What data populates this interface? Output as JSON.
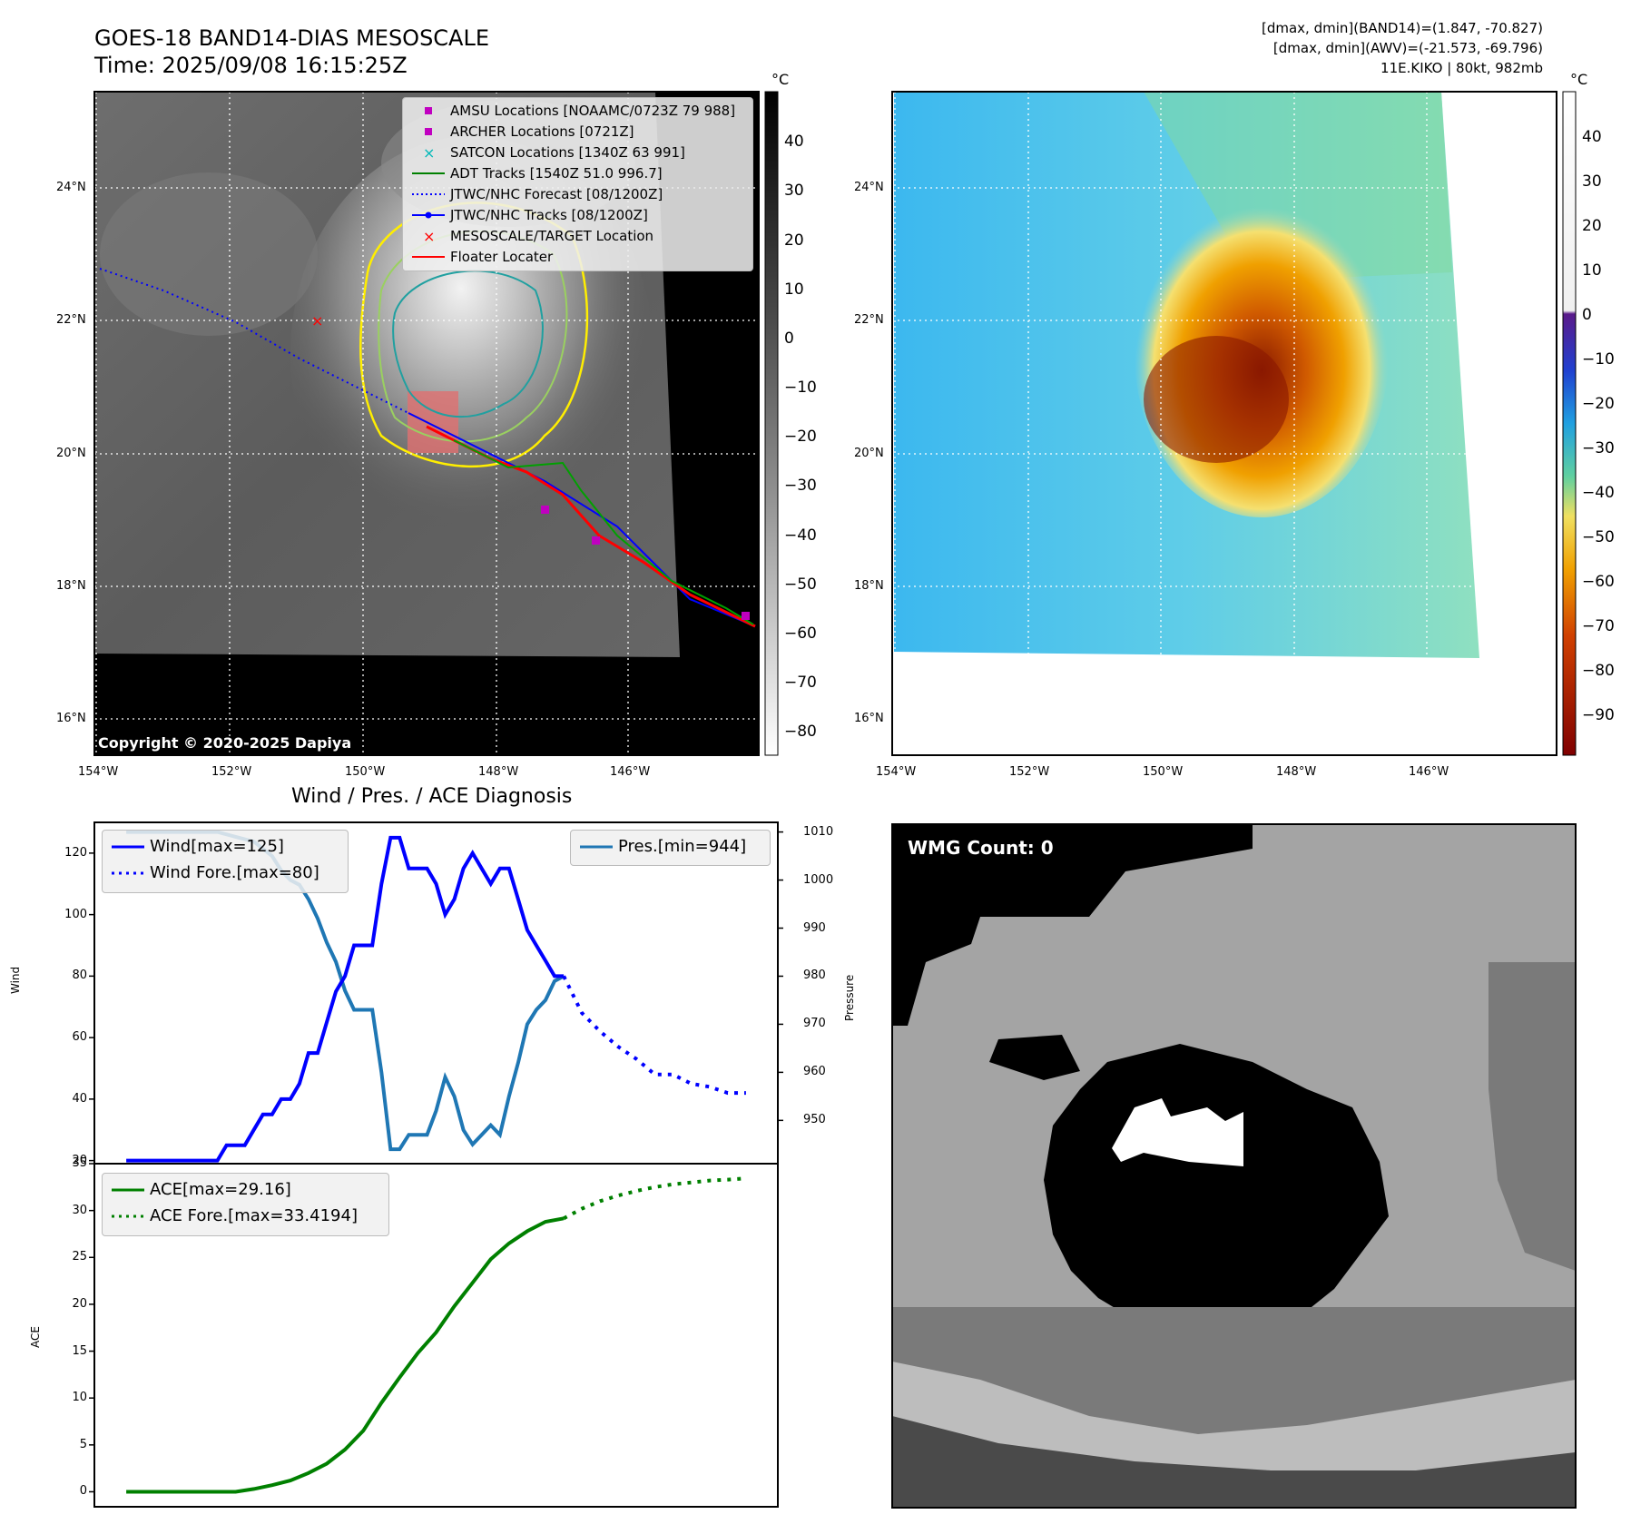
{
  "header": {
    "title_line1": "GOES-18 BAND14-DIAS MESOSCALE",
    "title_line2": "Time: 2025/09/08 16:15:25Z",
    "info_line1": "[dmax, dmin](BAND14)=(1.847, -70.827)",
    "info_line2": "[dmax, dmin](AWV)=(-21.573, -69.796)",
    "info_line3": "11E.KIKO | 80kt, 982mb"
  },
  "map_axes": {
    "lat_ticks": [
      "24°N",
      "22°N",
      "20°N",
      "18°N",
      "16°N"
    ],
    "lon_ticks": [
      "154°W",
      "152°W",
      "150°W",
      "148°W",
      "146°W"
    ]
  },
  "ir_panel": {
    "copyright": "Copyright © 2020-2025 Dapiya",
    "colorbar_unit": "°C",
    "colorbar_ticks": [
      "40",
      "30",
      "20",
      "10",
      "0",
      "−10",
      "−20",
      "−30",
      "−40",
      "−50",
      "−60",
      "−70",
      "−80"
    ],
    "legend": [
      {
        "label": "AMSU Locations [NOAAMC/0723Z 79 988]",
        "symbol": "square",
        "color": "#c000c0"
      },
      {
        "label": "ARCHER Locations [0721Z]",
        "symbol": "square",
        "color": "#c000c0"
      },
      {
        "label": "SATCON Locations [1340Z 63 991]",
        "symbol": "x",
        "color": "#00b8b8"
      },
      {
        "label": "ADT Tracks [1540Z 51.0 996.7]",
        "symbol": "line",
        "color": "#008000"
      },
      {
        "label": "JTWC/NHC Forecast [08/1200Z]",
        "symbol": "dotted",
        "color": "#0000ff"
      },
      {
        "label": "JTWC/NHC Tracks [08/1200Z]",
        "symbol": "line-dot",
        "color": "#0000ff"
      },
      {
        "label": "MESOSCALE/TARGET Location",
        "symbol": "x",
        "color": "#ff0000"
      },
      {
        "label": "Floater Locater",
        "symbol": "line",
        "color": "#ff0000"
      }
    ]
  },
  "awv_panel": {
    "colorbar_unit": "°C",
    "colorbar_ticks": [
      "40",
      "30",
      "20",
      "10",
      "0",
      "−10",
      "−20",
      "−30",
      "−40",
      "−50",
      "−60",
      "−70",
      "−80",
      "−90"
    ]
  },
  "wmg_panel": {
    "label": "WMG Count: 0"
  },
  "chart_data": [
    {
      "type": "line",
      "title": "Wind / Pres. / ACE Diagnosis",
      "ylabel": "Wind",
      "y2label": "Pressure",
      "ylim": [
        19,
        130
      ],
      "y2lim": [
        941,
        1012
      ],
      "yticks": [
        "120",
        "100",
        "80",
        "60",
        "40",
        "20"
      ],
      "y2ticks": [
        "1010",
        "1000",
        "990",
        "980",
        "970",
        "960",
        "950"
      ],
      "series": [
        {
          "name": "Wind[max=125]",
          "color": "#0000ff",
          "style": "solid",
          "axis": "left",
          "x": [
            0,
            1,
            2,
            3,
            4,
            5,
            6,
            7,
            8,
            9,
            10,
            11,
            12,
            13,
            14,
            15,
            16,
            17,
            18,
            19,
            20,
            21,
            22,
            23,
            24,
            25,
            26,
            27,
            28,
            29,
            30,
            31,
            32,
            33,
            34,
            35,
            36,
            37,
            38,
            39,
            40,
            41,
            42,
            43,
            44,
            45,
            46,
            47,
            48
          ],
          "values": [
            20,
            20,
            20,
            20,
            20,
            20,
            20,
            20,
            20,
            20,
            20,
            25,
            25,
            25,
            30,
            35,
            35,
            40,
            40,
            45,
            55,
            55,
            65,
            75,
            80,
            90,
            90,
            90,
            110,
            125,
            125,
            115,
            115,
            115,
            110,
            100,
            105,
            115,
            120,
            115,
            110,
            115,
            115,
            105,
            95,
            90,
            85,
            80,
            80
          ]
        },
        {
          "name": "Wind Fore.[max=80]",
          "color": "#0000ff",
          "style": "dotted",
          "axis": "left",
          "x": [
            48,
            50,
            52,
            54,
            56,
            58,
            60,
            62,
            64,
            66,
            68
          ],
          "values": [
            80,
            68,
            62,
            57,
            53,
            48,
            48,
            45,
            44,
            42,
            42
          ]
        },
        {
          "name": "Pres.[min=944]",
          "color": "#1f77b4",
          "style": "solid",
          "axis": "right",
          "x": [
            0,
            2,
            4,
            6,
            8,
            10,
            12,
            14,
            16,
            17,
            18,
            19,
            20,
            21,
            22,
            23,
            24,
            25,
            26,
            27,
            28,
            29,
            30,
            31,
            32,
            33,
            34,
            35,
            36,
            37,
            38,
            39,
            40,
            41,
            42,
            43,
            44,
            45,
            46,
            47,
            48
          ],
          "values": [
            1010,
            1010,
            1010,
            1010,
            1010,
            1010,
            1009,
            1008,
            1005,
            1002,
            1000,
            999,
            996,
            992,
            987,
            983,
            977,
            973,
            973,
            973,
            960,
            944,
            944,
            947,
            947,
            947,
            952,
            959,
            955,
            948,
            945,
            947,
            949,
            947,
            955,
            962,
            970,
            973,
            975,
            979,
            980
          ]
        }
      ]
    },
    {
      "type": "line",
      "ylabel": "ACE",
      "ylim": [
        -1.6,
        35
      ],
      "yticks": [
        "35",
        "30",
        "25",
        "20",
        "15",
        "10",
        "5",
        "0"
      ],
      "series": [
        {
          "name": "ACE[max=29.16]",
          "color": "#008000",
          "style": "solid",
          "x": [
            0,
            4,
            8,
            12,
            14,
            16,
            18,
            20,
            22,
            24,
            26,
            28,
            30,
            32,
            34,
            36,
            38,
            40,
            42,
            44,
            46,
            48
          ],
          "values": [
            0,
            0,
            0,
            0,
            0.3,
            0.7,
            1.2,
            2.0,
            3.0,
            4.5,
            6.5,
            9.5,
            12.2,
            14.8,
            17.0,
            19.8,
            22.3,
            24.8,
            26.5,
            27.8,
            28.8,
            29.16
          ]
        },
        {
          "name": "ACE Fore.[max=33.4194]",
          "color": "#008000",
          "style": "dotted",
          "x": [
            48,
            50,
            52,
            54,
            56,
            58,
            60,
            62,
            64,
            66,
            68
          ],
          "values": [
            29.16,
            30.2,
            31.0,
            31.6,
            32.1,
            32.5,
            32.8,
            33.0,
            33.2,
            33.3,
            33.42
          ]
        }
      ]
    }
  ]
}
